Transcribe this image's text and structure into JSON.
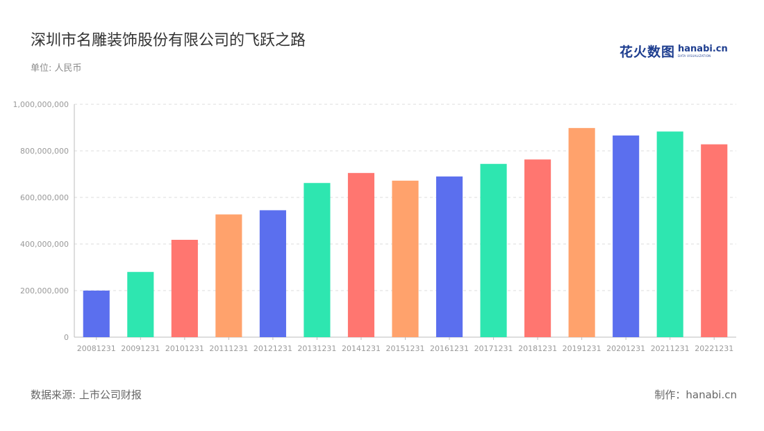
{
  "header": {
    "title": "深圳市名雕装饰股份有限公司的飞跃之路",
    "unit_label": "单位: 人民币"
  },
  "logo": {
    "cn": "花火数图",
    "en": "hanabi.cn",
    "tagline": "DATA VISUALIZATION"
  },
  "footer": {
    "source": "数据来源: 上市公司财报",
    "credit": "制作：hanabi.cn"
  },
  "colors": {
    "palette": [
      "#5b6fee",
      "#2ee6b0",
      "#ff7670",
      "#ffa26c"
    ],
    "grid": "#dddddd",
    "axis": "#bbbbbb"
  },
  "chart_data": {
    "type": "bar",
    "categories": [
      "20081231",
      "20091231",
      "20101231",
      "20111231",
      "20121231",
      "20131231",
      "20141231",
      "20151231",
      "20161231",
      "20171231",
      "20181231",
      "20191231",
      "20201231",
      "20211231",
      "20221231"
    ],
    "values": [
      200000000,
      280000000,
      418000000,
      527000000,
      545000000,
      662000000,
      705000000,
      672000000,
      690000000,
      744000000,
      763000000,
      898000000,
      866000000,
      883000000,
      828000000
    ],
    "ylim": [
      0,
      1000000000
    ],
    "yticks": [
      0,
      200000000,
      400000000,
      600000000,
      800000000,
      1000000000
    ],
    "ytick_labels": [
      "0",
      "200,000,000",
      "400,000,000",
      "600,000,000",
      "800,000,000",
      "1,000,000,000"
    ],
    "grid": true
  }
}
